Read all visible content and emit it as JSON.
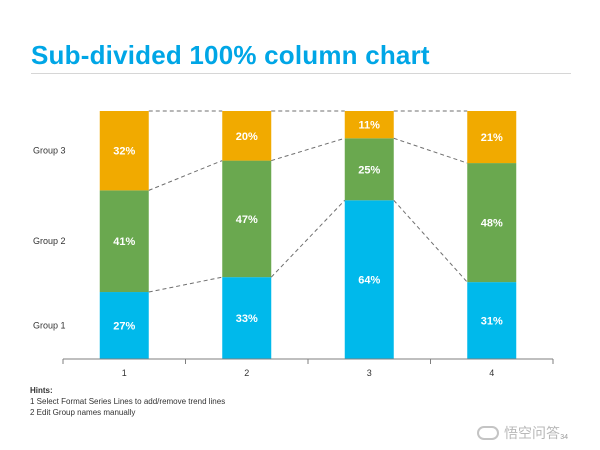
{
  "title": "Sub-divided 100% column chart",
  "chart_data": {
    "type": "bar",
    "stacked": "100%",
    "title": "Sub-divided 100% column chart",
    "categories": [
      "1",
      "2",
      "3",
      "4"
    ],
    "series": [
      {
        "name": "Group 1",
        "values": [
          27,
          33,
          64,
          31
        ],
        "labels": [
          "27%",
          "33%",
          "64%",
          "31%"
        ],
        "color": "#00b9eb"
      },
      {
        "name": "Group 2",
        "values": [
          41,
          47,
          25,
          48
        ],
        "labels": [
          "41%",
          "47%",
          "25%",
          "48%"
        ],
        "color": "#6aa84f"
      },
      {
        "name": "Group 3",
        "values": [
          32,
          20,
          11,
          21
        ],
        "labels": [
          "32%",
          "20%",
          "11%",
          "21%"
        ],
        "color": "#f1aa00"
      }
    ],
    "ylim": [
      0,
      100
    ],
    "series_lines": true,
    "legend": "left",
    "grid": false,
    "axis_color": "#7f7f7f",
    "label_color": "#ffffff"
  },
  "hints": {
    "title": "Hints:",
    "items": [
      "1 Select Format Series Lines to add/remove trend lines",
      "2 Edit Group names manually"
    ]
  },
  "footer": {
    "watermark": "悟空问答",
    "page": "34"
  }
}
